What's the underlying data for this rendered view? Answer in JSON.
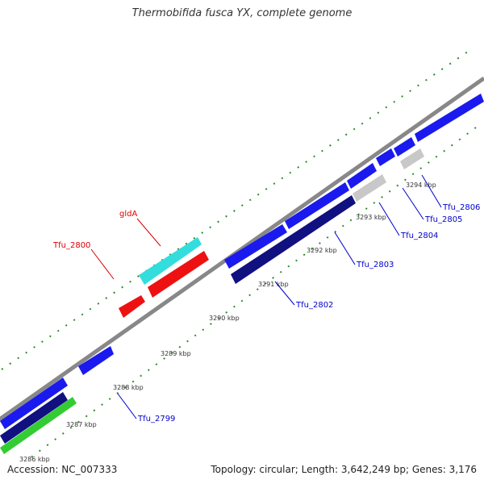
{
  "header": {
    "title": "Thermobifida fusca YX, complete genome"
  },
  "footer": {
    "accession": "Accession: NC_007333",
    "summary": "Topology: circular; Length: 3,642,249 bp; Genes: 3,176"
  },
  "colors": {
    "backbone": "#888888",
    "cds_forward": "#1a1aee",
    "cds_reverse": "#101080",
    "rna": "#ee1111",
    "trna": "#33dddd",
    "other": "#c8c8c8",
    "green_feature": "#33cc33",
    "label_red": "#dd0000",
    "label_blue": "#0000cc",
    "tick": "#2e8b2e"
  },
  "ticks": [
    "3286 kbp",
    "3287 kbp",
    "3288 kbp",
    "3289 kbp",
    "3290 kbp",
    "3291 kbp",
    "3292 kbp",
    "3293 kbp",
    "3294 kbp"
  ],
  "gene_labels": [
    {
      "id": "gldA",
      "text": "gldA",
      "color": "red"
    },
    {
      "id": "tfu2800",
      "text": "Tfu_2800",
      "color": "red"
    },
    {
      "id": "tfu2799",
      "text": "Tfu_2799",
      "color": "blue"
    },
    {
      "id": "tfu2802",
      "text": "Tfu_2802",
      "color": "blue"
    },
    {
      "id": "tfu2803",
      "text": "Tfu_2803",
      "color": "blue"
    },
    {
      "id": "tfu2804",
      "text": "Tfu_2804",
      "color": "blue"
    },
    {
      "id": "tfu2805",
      "text": "Tfu_2805",
      "color": "blue"
    },
    {
      "id": "tfu2806",
      "text": "Tfu_2806",
      "color": "blue"
    }
  ]
}
